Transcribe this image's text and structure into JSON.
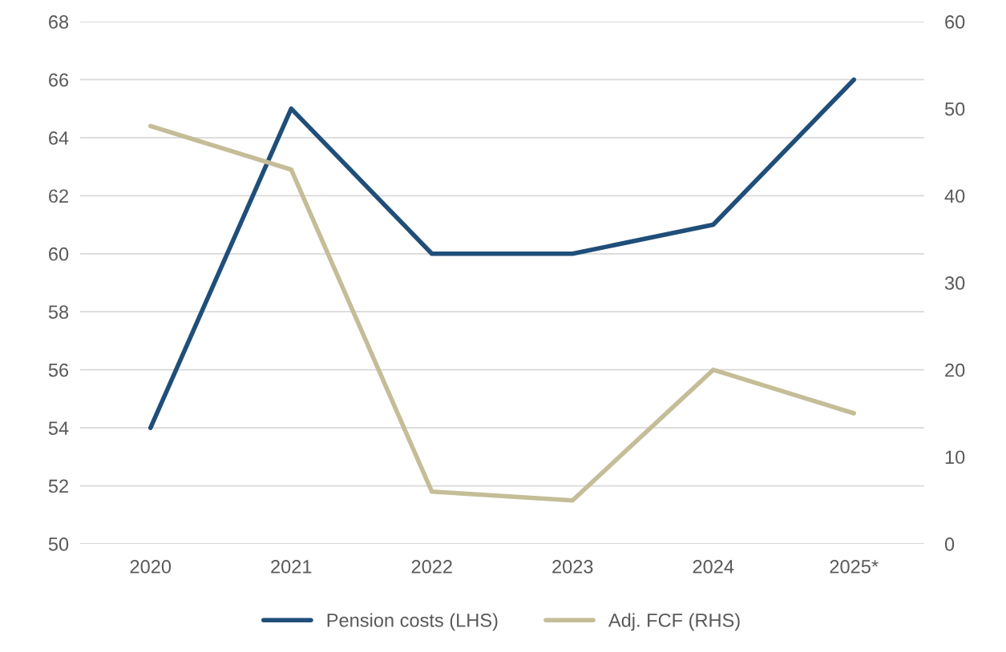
{
  "chart_data": {
    "type": "line",
    "categories": [
      "2020",
      "2021",
      "2022",
      "2023",
      "2024",
      "2025*"
    ],
    "series": [
      {
        "name": "Pension costs (LHS)",
        "color": "#1f4e79",
        "values": [
          54,
          65,
          60,
          60,
          61,
          66
        ]
      },
      {
        "name": "Adj. FCF (RHS)",
        "color": "#c4bd97",
        "axis": "y2",
        "values": [
          48,
          43,
          6,
          5,
          20,
          15
        ]
      }
    ],
    "ylim": [
      50,
      68
    ],
    "yticks": [
      50,
      52,
      54,
      56,
      58,
      60,
      62,
      64,
      66,
      68
    ],
    "y2lim": [
      0,
      60
    ],
    "y2ticks": [
      0,
      10,
      20,
      30,
      40,
      50,
      60
    ],
    "grid": "y",
    "legend": "bottom",
    "marker": "none",
    "line_style": "solid"
  }
}
